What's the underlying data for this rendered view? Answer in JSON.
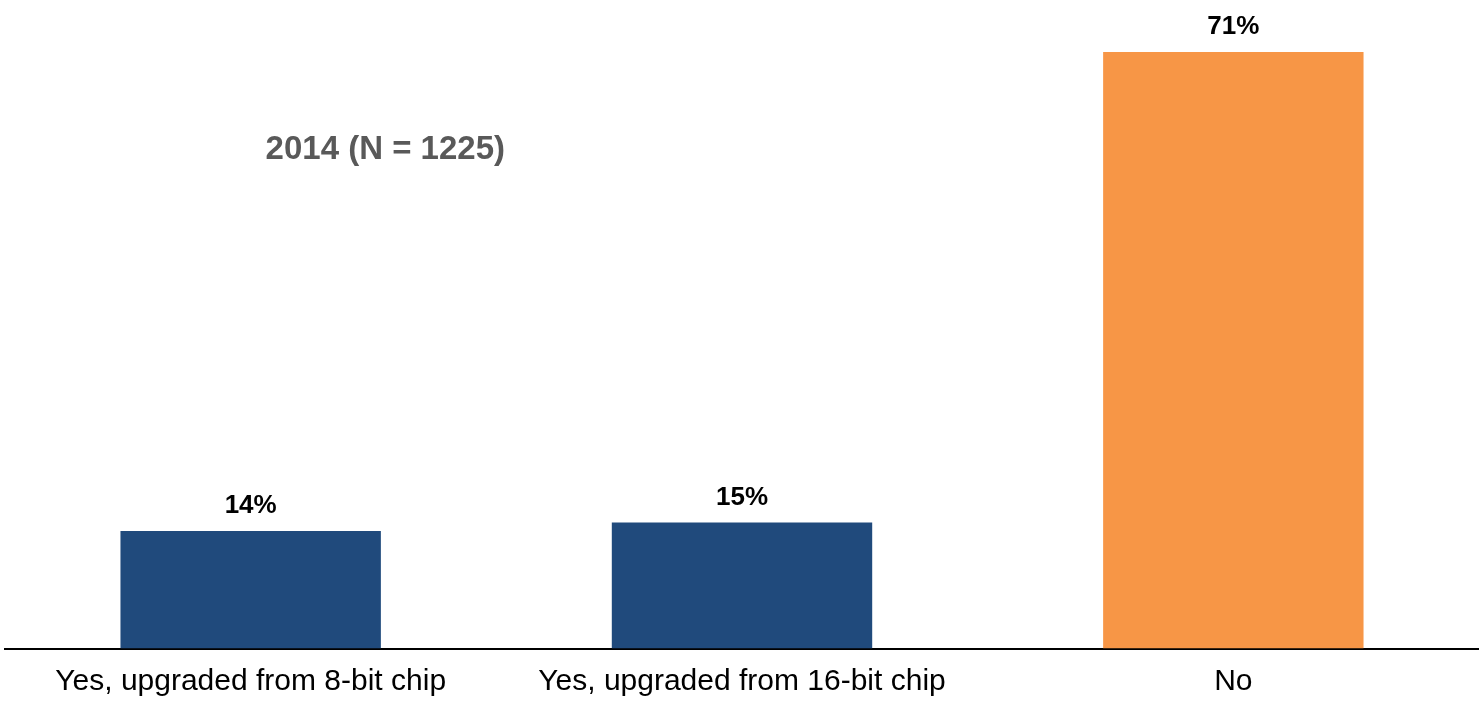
{
  "chart_data": {
    "type": "bar",
    "title": "2014 (N = 1225)",
    "categories": [
      "Yes, upgraded from 8-bit chip",
      "Yes, upgraded from 16-bit chip",
      "No"
    ],
    "values": [
      14,
      15,
      71
    ],
    "colors": [
      "#204a7c",
      "#204a7c",
      "#f79646"
    ],
    "value_labels": [
      "14%",
      "15%",
      "71%"
    ],
    "tick_labels": "x",
    "grid": false,
    "legend": false
  }
}
